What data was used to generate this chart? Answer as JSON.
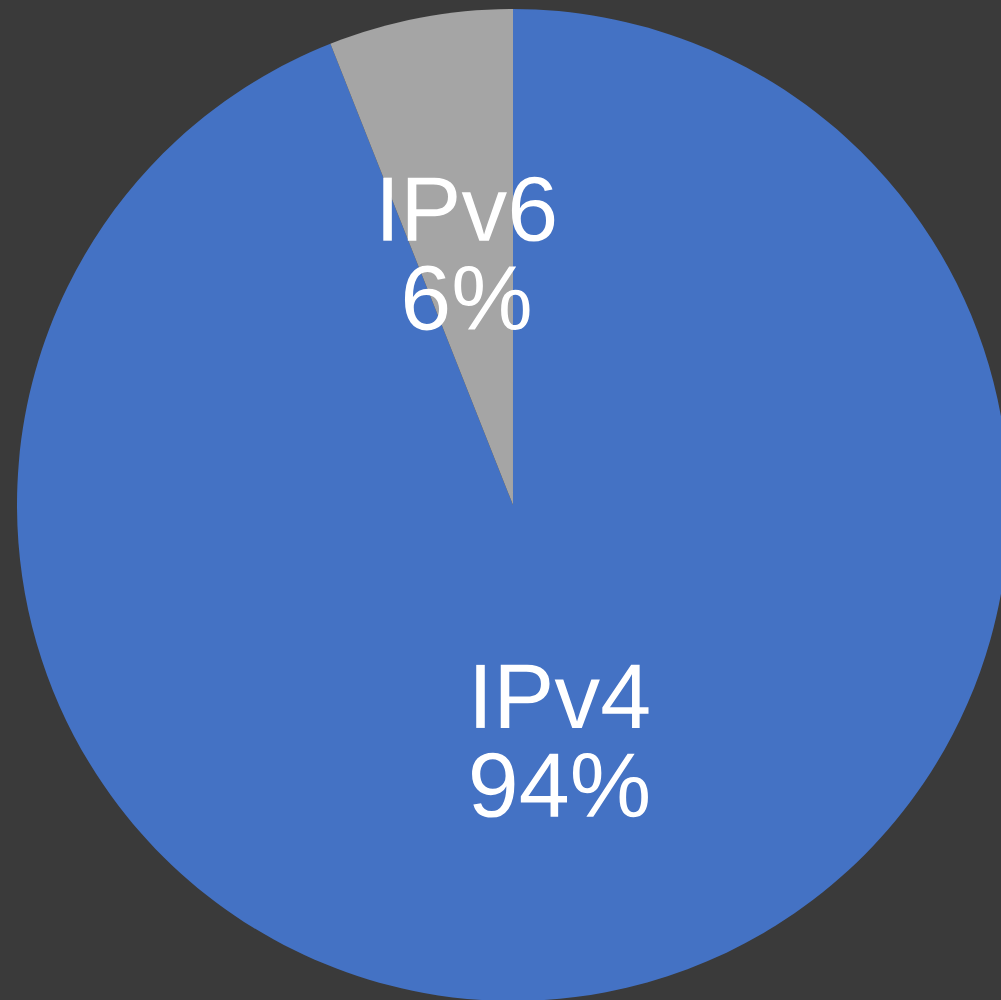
{
  "chart_data": {
    "type": "pie",
    "categories": [
      "IPv4",
      "IPv6"
    ],
    "values": [
      94,
      6
    ],
    "value_labels": [
      "94%",
      "6%"
    ],
    "colors": [
      "#4472c4",
      "#a5a5a5"
    ],
    "legend": false
  }
}
